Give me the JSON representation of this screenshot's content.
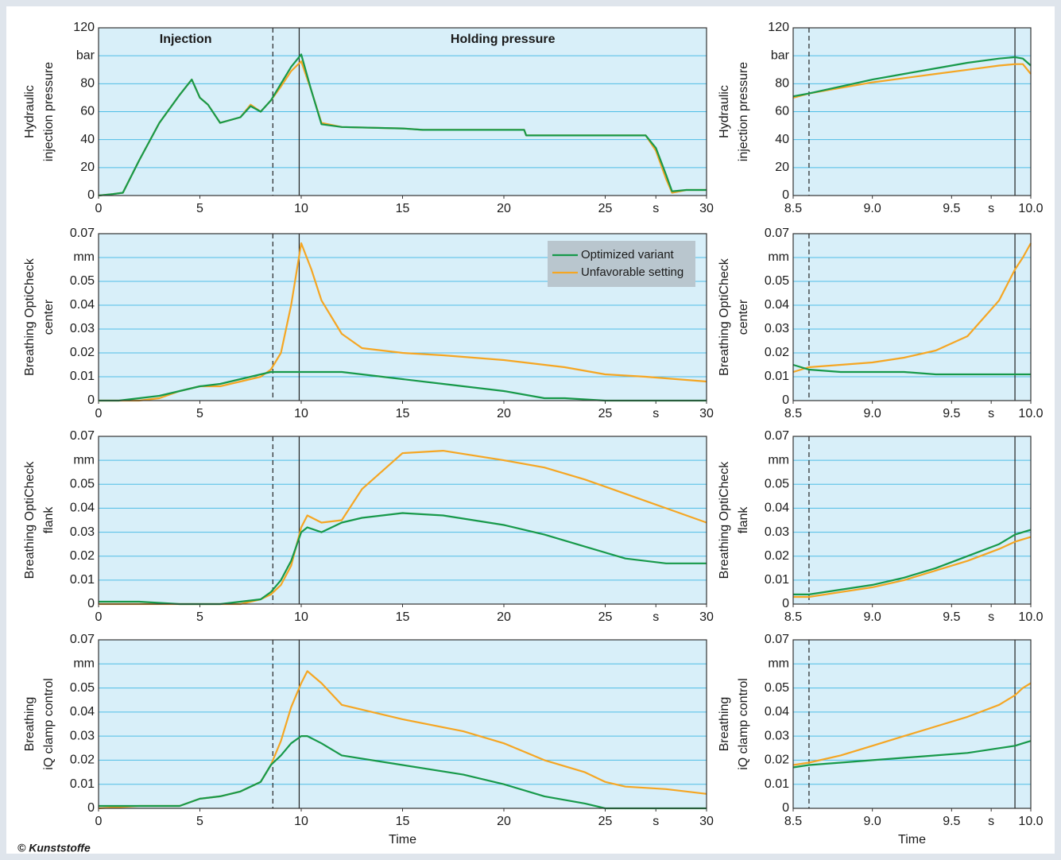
{
  "credit": "© Kunststoffe",
  "chart_data": [
    {
      "type": "line",
      "ylabel": [
        "Hydraulic",
        "injection pressure"
      ],
      "annotations": [
        "Injection",
        "Holding pressure"
      ],
      "xlim": [
        0,
        30
      ],
      "xticks": [
        0,
        5,
        10,
        15,
        20,
        25,
        {
          "value": 27.5,
          "label": "s"
        },
        30
      ],
      "ylim": [
        0,
        120
      ],
      "yticks": [
        0,
        20,
        40,
        60,
        80,
        {
          "value": 100,
          "label": "bar"
        },
        120
      ],
      "grid": true,
      "markers": [
        {
          "x": 8.6,
          "style": "dashed"
        },
        {
          "x": 9.9,
          "style": "solid"
        }
      ],
      "x": [
        0,
        0.7,
        1.2,
        2,
        3,
        4,
        4.6,
        5,
        5.4,
        6,
        7,
        7.5,
        8,
        8.5,
        9,
        9.5,
        10,
        10.5,
        11,
        12,
        15,
        16,
        21,
        21.1,
        25,
        27,
        27.5,
        28,
        28.3,
        29,
        30
      ],
      "series": [
        {
          "color": "#f5a623",
          "values": [
            0,
            1,
            2,
            25,
            52,
            72,
            83,
            70,
            65,
            52,
            56,
            65,
            60,
            68,
            78,
            89,
            96,
            75,
            52,
            49,
            48,
            47,
            47,
            43,
            43,
            43,
            32,
            12,
            2,
            4,
            4
          ]
        },
        {
          "color": "#17994a",
          "values": [
            0,
            1,
            2,
            25,
            52,
            72,
            83,
            70,
            65,
            52,
            56,
            64,
            60,
            68,
            80,
            92,
            101,
            75,
            51,
            49,
            48,
            47,
            47,
            43,
            43,
            43,
            34,
            15,
            3,
            4,
            4
          ]
        }
      ]
    },
    {
      "type": "line",
      "ylabel": [
        "Hydraulic",
        "injection pressure"
      ],
      "xlim": [
        8.5,
        10
      ],
      "xticks": [
        8.5,
        {
          "value": 9,
          "label": "9.0"
        },
        9.5,
        {
          "value": 9.75,
          "label": "s"
        },
        {
          "value": 10,
          "label": "10.0"
        }
      ],
      "ylim": [
        0,
        120
      ],
      "yticks": [
        0,
        20,
        40,
        60,
        80,
        {
          "value": 100,
          "label": "bar"
        },
        120
      ],
      "grid": true,
      "markers": [
        {
          "x": 8.6,
          "style": "dashed"
        },
        {
          "x": 9.9,
          "style": "solid"
        }
      ],
      "x": [
        8.5,
        8.6,
        8.8,
        9.0,
        9.2,
        9.4,
        9.6,
        9.8,
        9.9,
        9.95,
        10.0
      ],
      "series": [
        {
          "color": "#f5a623",
          "values": [
            70,
            73,
            77,
            81,
            84,
            87,
            90,
            93,
            94,
            94,
            87
          ]
        },
        {
          "color": "#17994a",
          "values": [
            71,
            73,
            78,
            83,
            87,
            91,
            95,
            98,
            99,
            98,
            93
          ]
        }
      ]
    },
    {
      "type": "line",
      "ylabel": [
        "Breathing OptiCheck",
        "center"
      ],
      "legend": "upper right",
      "xlim": [
        0,
        30
      ],
      "xticks": [
        0,
        5,
        10,
        15,
        20,
        25,
        {
          "value": 27.5,
          "label": "s"
        },
        30
      ],
      "ylim": [
        0,
        0.07
      ],
      "yticks": [
        0,
        0.01,
        0.02,
        0.03,
        0.04,
        0.05,
        {
          "value": 0.06,
          "label": "mm"
        },
        0.07
      ],
      "grid": true,
      "markers": [
        {
          "x": 8.6,
          "style": "dashed"
        },
        {
          "x": 9.9,
          "style": "solid"
        }
      ],
      "x": [
        0,
        1,
        2,
        3,
        4,
        5,
        6,
        7,
        8,
        8.5,
        9,
        9.5,
        10,
        10.5,
        11,
        12,
        13,
        15,
        17,
        20,
        22,
        23,
        25,
        27,
        30
      ],
      "series": [
        {
          "name": "Unfavorable setting",
          "color": "#f5a623",
          "values": [
            0,
            0,
            0,
            0.001,
            0.004,
            0.006,
            0.006,
            0.008,
            0.01,
            0.013,
            0.02,
            0.04,
            0.066,
            0.055,
            0.042,
            0.028,
            0.022,
            0.02,
            0.019,
            0.017,
            0.015,
            0.014,
            0.011,
            0.01,
            0.008
          ]
        },
        {
          "name": "Optimized variant",
          "color": "#17994a",
          "values": [
            0,
            0,
            0.001,
            0.002,
            0.004,
            0.006,
            0.007,
            0.009,
            0.011,
            0.012,
            0.012,
            0.012,
            0.012,
            0.012,
            0.012,
            0.012,
            0.011,
            0.009,
            0.007,
            0.004,
            0.001,
            0.001,
            0,
            0,
            0
          ]
        }
      ]
    },
    {
      "type": "line",
      "ylabel": [
        "Breathing OptiCheck",
        "center"
      ],
      "xlim": [
        8.5,
        10
      ],
      "xticks": [
        8.5,
        {
          "value": 9,
          "label": "9.0"
        },
        9.5,
        {
          "value": 9.75,
          "label": "s"
        },
        {
          "value": 10,
          "label": "10.0"
        }
      ],
      "ylim": [
        0,
        0.07
      ],
      "yticks": [
        0,
        0.01,
        0.02,
        0.03,
        0.04,
        0.05,
        {
          "value": 0.06,
          "label": "mm"
        },
        0.07
      ],
      "grid": true,
      "markers": [
        {
          "x": 8.6,
          "style": "dashed"
        },
        {
          "x": 9.9,
          "style": "solid"
        }
      ],
      "x": [
        8.5,
        8.6,
        8.8,
        9.0,
        9.2,
        9.4,
        9.6,
        9.8,
        9.9,
        9.95,
        10.0
      ],
      "series": [
        {
          "color": "#f5a623",
          "values": [
            0.012,
            0.014,
            0.015,
            0.016,
            0.018,
            0.021,
            0.027,
            0.042,
            0.055,
            0.06,
            0.066
          ]
        },
        {
          "color": "#17994a",
          "values": [
            0.015,
            0.013,
            0.012,
            0.012,
            0.012,
            0.011,
            0.011,
            0.011,
            0.011,
            0.011,
            0.011
          ]
        }
      ]
    },
    {
      "type": "line",
      "ylabel": [
        "Breathing OptiCheck",
        "flank"
      ],
      "xlim": [
        0,
        30
      ],
      "xticks": [
        0,
        5,
        10,
        15,
        20,
        25,
        {
          "value": 27.5,
          "label": "s"
        },
        30
      ],
      "ylim": [
        0,
        0.07
      ],
      "yticks": [
        0,
        0.01,
        0.02,
        0.03,
        0.04,
        0.05,
        {
          "value": 0.06,
          "label": "mm"
        },
        0.07
      ],
      "grid": true,
      "markers": [
        {
          "x": 8.6,
          "style": "dashed"
        },
        {
          "x": 9.9,
          "style": "solid"
        }
      ],
      "x": [
        0,
        2,
        4,
        6,
        7,
        8,
        8.5,
        9,
        9.5,
        10,
        10.3,
        11,
        12,
        13,
        15,
        17,
        20,
        22,
        24,
        26,
        28,
        30
      ],
      "series": [
        {
          "color": "#f5a623",
          "values": [
            0,
            0,
            0,
            0,
            0,
            0.002,
            0.004,
            0.008,
            0.016,
            0.032,
            0.037,
            0.034,
            0.035,
            0.048,
            0.063,
            0.064,
            0.06,
            0.057,
            0.052,
            0.046,
            0.04,
            0.034
          ]
        },
        {
          "color": "#17994a",
          "values": [
            0.001,
            0.001,
            0,
            0,
            0.001,
            0.002,
            0.005,
            0.01,
            0.018,
            0.03,
            0.032,
            0.03,
            0.034,
            0.036,
            0.038,
            0.037,
            0.033,
            0.029,
            0.024,
            0.019,
            0.017,
            0.017
          ]
        }
      ]
    },
    {
      "type": "line",
      "ylabel": [
        "Breathing OptiCheck",
        "flank"
      ],
      "xlim": [
        8.5,
        10
      ],
      "xticks": [
        8.5,
        {
          "value": 9,
          "label": "9.0"
        },
        9.5,
        {
          "value": 9.75,
          "label": "s"
        },
        {
          "value": 10,
          "label": "10.0"
        }
      ],
      "ylim": [
        0,
        0.07
      ],
      "yticks": [
        0,
        0.01,
        0.02,
        0.03,
        0.04,
        0.05,
        {
          "value": 0.06,
          "label": "mm"
        },
        0.07
      ],
      "grid": true,
      "markers": [
        {
          "x": 8.6,
          "style": "dashed"
        },
        {
          "x": 9.9,
          "style": "solid"
        }
      ],
      "x": [
        8.5,
        8.6,
        8.8,
        9.0,
        9.2,
        9.4,
        9.6,
        9.8,
        9.9,
        9.95,
        10.0
      ],
      "series": [
        {
          "color": "#f5a623",
          "values": [
            0.003,
            0.003,
            0.005,
            0.007,
            0.01,
            0.014,
            0.018,
            0.023,
            0.026,
            0.027,
            0.028
          ]
        },
        {
          "color": "#17994a",
          "values": [
            0.004,
            0.004,
            0.006,
            0.008,
            0.011,
            0.015,
            0.02,
            0.025,
            0.029,
            0.03,
            0.031
          ]
        }
      ]
    },
    {
      "type": "line",
      "ylabel": [
        "Breathing",
        "iQ clamp control"
      ],
      "xlabel": "Time",
      "xlim": [
        0,
        30
      ],
      "xticks": [
        0,
        5,
        10,
        15,
        20,
        25,
        {
          "value": 27.5,
          "label": "s"
        },
        30
      ],
      "ylim": [
        0,
        0.07
      ],
      "yticks": [
        0,
        0.01,
        0.02,
        0.03,
        0.04,
        0.05,
        {
          "value": 0.06,
          "label": "mm"
        },
        0.07
      ],
      "grid": true,
      "markers": [
        {
          "x": 8.6,
          "style": "dashed"
        },
        {
          "x": 9.9,
          "style": "solid"
        }
      ],
      "x": [
        0,
        2,
        4,
        5,
        6,
        7,
        8,
        8.5,
        9,
        9.5,
        10,
        10.3,
        11,
        12,
        15,
        18,
        20,
        22,
        24,
        25,
        26,
        28,
        30
      ],
      "series": [
        {
          "color": "#f5a623",
          "values": [
            0,
            0.001,
            0.001,
            0.004,
            0.005,
            0.007,
            0.011,
            0.018,
            0.028,
            0.042,
            0.052,
            0.057,
            0.052,
            0.043,
            0.037,
            0.032,
            0.027,
            0.02,
            0.015,
            0.011,
            0.009,
            0.008,
            0.006
          ]
        },
        {
          "color": "#17994a",
          "values": [
            0.001,
            0.001,
            0.001,
            0.004,
            0.005,
            0.007,
            0.011,
            0.018,
            0.022,
            0.027,
            0.03,
            0.03,
            0.027,
            0.022,
            0.018,
            0.014,
            0.01,
            0.005,
            0.002,
            0,
            0,
            0,
            0
          ]
        }
      ]
    },
    {
      "type": "line",
      "ylabel": [
        "Breathing",
        "iQ clamp control"
      ],
      "xlabel": "Time",
      "xlim": [
        8.5,
        10
      ],
      "xticks": [
        8.5,
        {
          "value": 9,
          "label": "9.0"
        },
        9.5,
        {
          "value": 9.75,
          "label": "s"
        },
        {
          "value": 10,
          "label": "10.0"
        }
      ],
      "ylim": [
        0,
        0.07
      ],
      "yticks": [
        0,
        0.01,
        0.02,
        0.03,
        0.04,
        0.05,
        {
          "value": 0.06,
          "label": "mm"
        },
        0.07
      ],
      "grid": true,
      "markers": [
        {
          "x": 8.6,
          "style": "dashed"
        },
        {
          "x": 9.9,
          "style": "solid"
        }
      ],
      "x": [
        8.5,
        8.6,
        8.8,
        9.0,
        9.2,
        9.4,
        9.6,
        9.8,
        9.9,
        9.95,
        10.0
      ],
      "series": [
        {
          "color": "#f5a623",
          "values": [
            0.018,
            0.019,
            0.022,
            0.026,
            0.03,
            0.034,
            0.038,
            0.043,
            0.047,
            0.05,
            0.052
          ]
        },
        {
          "color": "#17994a",
          "values": [
            0.017,
            0.018,
            0.019,
            0.02,
            0.021,
            0.022,
            0.023,
            0.025,
            0.026,
            0.027,
            0.028
          ]
        }
      ]
    }
  ]
}
